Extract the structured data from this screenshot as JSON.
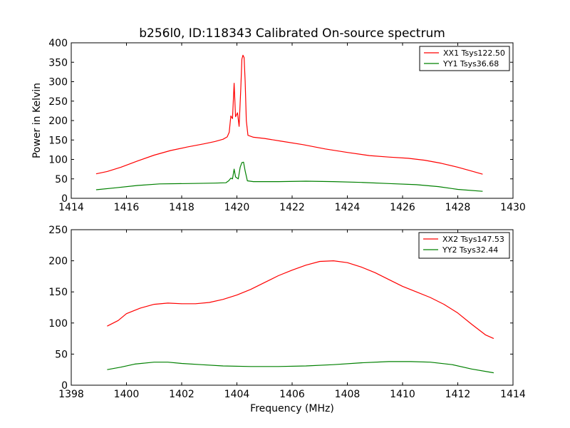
{
  "chart_data": [
    {
      "type": "line",
      "title": "b256l0, ID:118343 Calibrated On-source spectrum",
      "xlabel": "",
      "ylabel": "Power in Kelvin",
      "xlim": [
        1414,
        1430
      ],
      "ylim": [
        0,
        400
      ],
      "xticks": [
        "1414",
        "1416",
        "1418",
        "1420",
        "1422",
        "1424",
        "1426",
        "1428",
        "1430"
      ],
      "yticks": [
        "0",
        "50",
        "100",
        "150",
        "200",
        "250",
        "300",
        "350",
        "400"
      ],
      "legend_position": "top-right",
      "series": [
        {
          "name": "XX1 Tsys122.50",
          "color": "#ff0000",
          "points": [
            [
              1414.9,
              63
            ],
            [
              1415.3,
              69
            ],
            [
              1415.8,
              80
            ],
            [
              1416.4,
              96
            ],
            [
              1417.0,
              111
            ],
            [
              1417.6,
              123
            ],
            [
              1418.2,
              132
            ],
            [
              1418.8,
              140
            ],
            [
              1419.2,
              146
            ],
            [
              1419.5,
              152
            ],
            [
              1419.65,
              158
            ],
            [
              1419.72,
              170
            ],
            [
              1419.78,
              212
            ],
            [
              1419.84,
              205
            ],
            [
              1419.9,
              296
            ],
            [
              1419.95,
              210
            ],
            [
              1420.02,
              220
            ],
            [
              1420.08,
              185
            ],
            [
              1420.14,
              280
            ],
            [
              1420.18,
              358
            ],
            [
              1420.22,
              368
            ],
            [
              1420.26,
              362
            ],
            [
              1420.3,
              300
            ],
            [
              1420.34,
              200
            ],
            [
              1420.4,
              162
            ],
            [
              1420.6,
              157
            ],
            [
              1421.0,
              154
            ],
            [
              1421.6,
              147
            ],
            [
              1422.4,
              138
            ],
            [
              1423.2,
              127
            ],
            [
              1424.0,
              118
            ],
            [
              1424.8,
              110
            ],
            [
              1425.5,
              106
            ],
            [
              1426.2,
              103
            ],
            [
              1426.8,
              98
            ],
            [
              1427.4,
              90
            ],
            [
              1428.0,
              80
            ],
            [
              1428.5,
              70
            ],
            [
              1428.9,
              62
            ]
          ]
        },
        {
          "name": "YY1 Tsys36.68",
          "color": "#008000",
          "points": [
            [
              1414.9,
              22
            ],
            [
              1415.6,
              27
            ],
            [
              1416.4,
              33
            ],
            [
              1417.2,
              37
            ],
            [
              1418.2,
              38
            ],
            [
              1419.2,
              39
            ],
            [
              1419.6,
              40
            ],
            [
              1419.7,
              45
            ],
            [
              1419.78,
              52
            ],
            [
              1419.84,
              50
            ],
            [
              1419.9,
              75
            ],
            [
              1419.95,
              55
            ],
            [
              1420.05,
              50
            ],
            [
              1420.12,
              80
            ],
            [
              1420.18,
              92
            ],
            [
              1420.24,
              93
            ],
            [
              1420.3,
              70
            ],
            [
              1420.38,
              45
            ],
            [
              1420.6,
              43
            ],
            [
              1421.5,
              43
            ],
            [
              1422.5,
              44
            ],
            [
              1423.5,
              43
            ],
            [
              1424.5,
              41
            ],
            [
              1425.5,
              38
            ],
            [
              1426.5,
              35
            ],
            [
              1427.3,
              30
            ],
            [
              1428.0,
              23
            ],
            [
              1428.9,
              18
            ]
          ]
        }
      ]
    },
    {
      "type": "line",
      "title": "",
      "xlabel": "Frequency (MHz)",
      "ylabel": "",
      "xlim": [
        1398,
        1414
      ],
      "ylim": [
        0,
        250
      ],
      "xticks": [
        "1398",
        "1400",
        "1402",
        "1404",
        "1406",
        "1408",
        "1410",
        "1412",
        "1414"
      ],
      "yticks": [
        "0",
        "50",
        "100",
        "150",
        "200",
        "250"
      ],
      "legend_position": "top-right",
      "series": [
        {
          "name": "XX2 Tsys147.53",
          "color": "#ff0000",
          "points": [
            [
              1399.3,
              95
            ],
            [
              1399.7,
              104
            ],
            [
              1400.0,
              115
            ],
            [
              1400.5,
              124
            ],
            [
              1401.0,
              130
            ],
            [
              1401.5,
              132
            ],
            [
              1402.0,
              131
            ],
            [
              1402.5,
              131
            ],
            [
              1403.0,
              133
            ],
            [
              1403.5,
              138
            ],
            [
              1404.0,
              145
            ],
            [
              1404.5,
              154
            ],
            [
              1405.0,
              165
            ],
            [
              1405.5,
              176
            ],
            [
              1406.0,
              185
            ],
            [
              1406.5,
              193
            ],
            [
              1407.0,
              199
            ],
            [
              1407.5,
              200
            ],
            [
              1408.0,
              197
            ],
            [
              1408.5,
              190
            ],
            [
              1409.0,
              181
            ],
            [
              1409.5,
              170
            ],
            [
              1410.0,
              159
            ],
            [
              1410.5,
              150
            ],
            [
              1411.0,
              141
            ],
            [
              1411.5,
              130
            ],
            [
              1412.0,
              116
            ],
            [
              1412.5,
              98
            ],
            [
              1413.0,
              81
            ],
            [
              1413.3,
              75
            ]
          ]
        },
        {
          "name": "YY2 Tsys32.44",
          "color": "#008000",
          "points": [
            [
              1399.3,
              25
            ],
            [
              1399.8,
              29
            ],
            [
              1400.3,
              34
            ],
            [
              1401.0,
              37
            ],
            [
              1401.5,
              37
            ],
            [
              1402.0,
              35
            ],
            [
              1402.7,
              33
            ],
            [
              1403.5,
              31
            ],
            [
              1404.5,
              30
            ],
            [
              1405.5,
              30
            ],
            [
              1406.5,
              31
            ],
            [
              1407.5,
              33
            ],
            [
              1408.5,
              36
            ],
            [
              1409.5,
              38
            ],
            [
              1410.3,
              38
            ],
            [
              1411.0,
              37
            ],
            [
              1411.8,
              33
            ],
            [
              1412.5,
              26
            ],
            [
              1413.3,
              20
            ]
          ]
        }
      ]
    }
  ]
}
